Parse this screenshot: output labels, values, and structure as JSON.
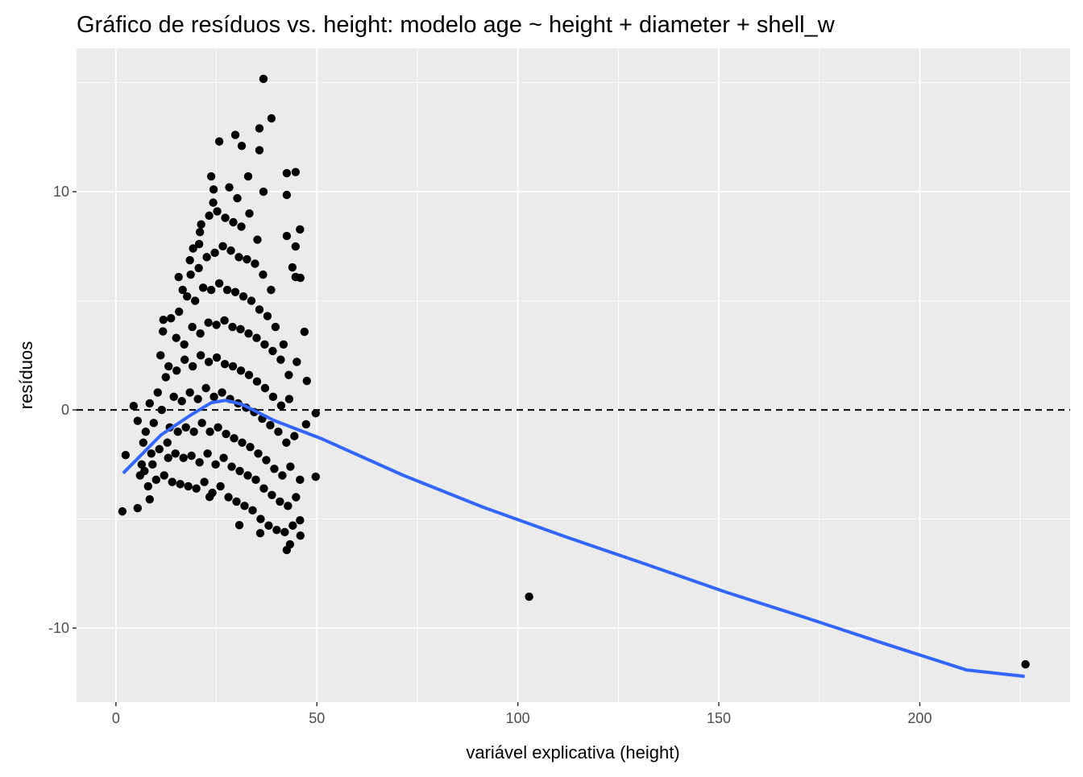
{
  "chart_data": {
    "type": "scatter",
    "title": "Gráfico de resíduos vs. height: modelo age ~ height + diameter + shell_w",
    "x_label": "variável explicativa (height)",
    "y_label": "resíduos",
    "xlim": [
      -9.8,
      237.4
    ],
    "ylim": [
      -13.39,
      16.57
    ],
    "xticks": [
      0,
      50,
      100,
      150,
      200
    ],
    "yticks": [
      -10,
      0,
      10
    ],
    "xminor": [
      25,
      75,
      125,
      175,
      225
    ],
    "yminor": [
      -5,
      5,
      15
    ],
    "grid": true,
    "hline": {
      "value": 0,
      "style": "dashed",
      "color": "#000000"
    },
    "series": [
      {
        "color": "#000000",
        "x": [
          6,
          6.8,
          5.4,
          6.4,
          8,
          8.8,
          7.4,
          8.4,
          7.1,
          10,
          10.8,
          9.4,
          10.4,
          9.1,
          12,
          12.8,
          11.4,
          12.4,
          11.1,
          13,
          11.7,
          14,
          14.8,
          13.4,
          14.4,
          13.1,
          15,
          13.7,
          16,
          16.8,
          15.4,
          16.4,
          15.1,
          17,
          15.7,
          16.6,
          18,
          18.8,
          17.4,
          18.4,
          17.1,
          19,
          17.7,
          18.6,
          20,
          20.8,
          19.4,
          20.4,
          19.1,
          21,
          19.7,
          20.6,
          19.2,
          22,
          22.8,
          21.4,
          22.4,
          21.1,
          23,
          21.7,
          22.6,
          21.2,
          24,
          24.8,
          23.4,
          24.4,
          23.1,
          25,
          23.7,
          24.6,
          23.2,
          24.2,
          26,
          26.8,
          25.4,
          26.4,
          25.1,
          27,
          25.7,
          26.6,
          25.2,
          28,
          28.8,
          27.4,
          28.4,
          27.1,
          29,
          27.7,
          28.6,
          27.2,
          28.2,
          30,
          30.8,
          29.4,
          30.4,
          29.1,
          31,
          29.7,
          30.6,
          29.2,
          30.2,
          32,
          32.8,
          31.4,
          32.4,
          31.1,
          33,
          31.7,
          32.6,
          31.2,
          34,
          34.8,
          33.4,
          34.4,
          33.1,
          35,
          33.7,
          34.6,
          33.2,
          36,
          36.8,
          35.4,
          36.4,
          35.1,
          37,
          35.7,
          36.6,
          35.2,
          38,
          38.8,
          37.4,
          38.4,
          37.1,
          39,
          37.7,
          38.6,
          40,
          40.8,
          39.4,
          40.4,
          39.1,
          41,
          39.7,
          42,
          42.8,
          41.4,
          42.4,
          41.1,
          43,
          41.7,
          44,
          44.8,
          43.4,
          44.4,
          43.1,
          45,
          36.7,
          38.7,
          35.7,
          29.7,
          25.7,
          31.3,
          35.7,
          23.7,
          32.9,
          42.5,
          44.7,
          24.3,
          36.7,
          42.5,
          45.8,
          44.7,
          42.5,
          43.9,
          44.7,
          45.9,
          46.9,
          47.5,
          47.3,
          49.7,
          49.7,
          45.8,
          45.8,
          45.9,
          43.3,
          42.5,
          35.9,
          30.7,
          23.3,
          1.6,
          5.4,
          4.4,
          2.4,
          8.4,
          11.8,
          15.6,
          18.4,
          20.9,
          20.7,
          102.8,
          226.3
        ],
        "values": [
          -3,
          -1.5,
          -0.5,
          -2.5,
          -3.5,
          -2,
          -1,
          0.3,
          -2.8,
          -3.2,
          -1.8,
          -0.6,
          0.8,
          -2.5,
          -3,
          -1.5,
          0,
          1.5,
          2.5,
          -2.2,
          3.6,
          -3.3,
          -2,
          -0.8,
          0.6,
          2,
          3.3,
          4.2,
          -3.4,
          -2.2,
          -1,
          0.4,
          1.8,
          3,
          4.5,
          5.5,
          -3.5,
          -2.1,
          -0.8,
          0.8,
          2.3,
          3.8,
          5.2,
          6.2,
          -3.6,
          -2.4,
          -1,
          0.5,
          2,
          3.5,
          5,
          6.5,
          7.4,
          -3.3,
          -2,
          -0.6,
          1,
          2.5,
          4,
          5.6,
          7,
          8.5,
          -3.8,
          -2.5,
          -1,
          0.6,
          2.2,
          3.9,
          5.5,
          7.2,
          8.9,
          9.5,
          -3.5,
          -2.2,
          -0.8,
          0.8,
          2.4,
          4.1,
          5.8,
          7.5,
          9.1,
          -4,
          -2.6,
          -1.1,
          0.5,
          2.1,
          3.8,
          5.5,
          7.3,
          8.8,
          10.2,
          -4.2,
          -2.8,
          -1.3,
          0.3,
          2,
          3.7,
          5.4,
          7,
          8.6,
          9.7,
          -4.4,
          -3,
          -1.5,
          0.1,
          1.8,
          3.5,
          5.2,
          6.9,
          8.4,
          -4.6,
          -3.2,
          -1.7,
          -0.1,
          1.6,
          3.3,
          5,
          6.7,
          9,
          -5,
          -3.6,
          -2,
          -0.4,
          1.3,
          3,
          4.6,
          6.2,
          7.8,
          -5.3,
          -3.9,
          -2.3,
          -0.7,
          1,
          2.7,
          4.3,
          5.5,
          -5.5,
          -4.2,
          -2.7,
          -1,
          0.6,
          2.3,
          3.8,
          -5.6,
          -4.4,
          -3,
          -1.5,
          0.2,
          1.6,
          3,
          -5.3,
          -4,
          -2.6,
          -1.2,
          0.5,
          2.2,
          15.17,
          13.36,
          12.9,
          12.6,
          12.3,
          12.1,
          11.9,
          10.7,
          10.7,
          10.85,
          10.9,
          10.1,
          10,
          9.85,
          8.27,
          7.49,
          7.97,
          6.53,
          6.09,
          6.05,
          3.58,
          1.33,
          -0.66,
          -0.15,
          -3.06,
          -3.2,
          -5.06,
          -5.76,
          -6.16,
          -6.42,
          -5.65,
          -5.28,
          -3.99,
          -4.65,
          -4.5,
          0.18,
          -2.07,
          -4.1,
          4.13,
          6.09,
          6.86,
          8.15,
          7.6,
          -8.56,
          -11.66
        ]
      }
    ],
    "smooth": {
      "color": "#3366ff",
      "x": [
        1.8,
        11.2,
        18.4,
        23.7,
        27.3,
        31.3,
        39.3,
        51.3,
        71.4,
        91.4,
        111.5,
        131.5,
        151.6,
        171.6,
        191.7,
        211.7,
        226.1
      ],
      "values": [
        -2.9,
        -1.15,
        -0.26,
        0.33,
        0.44,
        0.26,
        -0.48,
        -1.33,
        -2.99,
        -4.46,
        -5.79,
        -7.05,
        -8.34,
        -9.52,
        -10.74,
        -11.92,
        -12.21
      ]
    }
  }
}
